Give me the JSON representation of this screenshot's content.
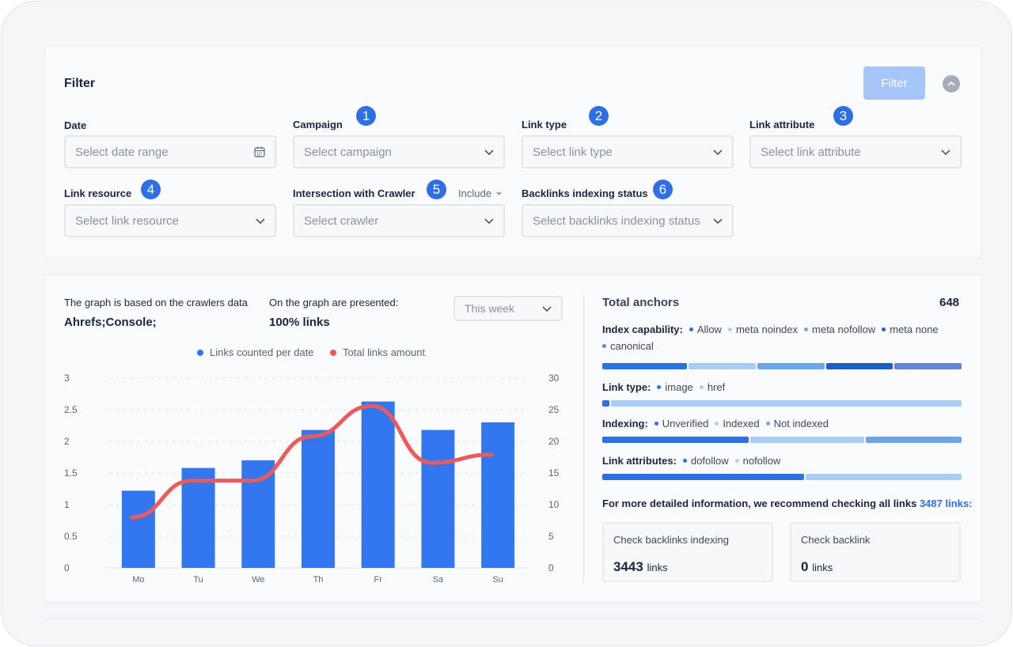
{
  "filter": {
    "title": "Filter",
    "filter_button": "Filter",
    "fields": {
      "date": {
        "label": "Date",
        "placeholder": "Select date range"
      },
      "campaign": {
        "label": "Campaign",
        "placeholder": "Select campaign",
        "badge": "1"
      },
      "link_type": {
        "label": "Link type",
        "placeholder": "Select link type",
        "badge": "2"
      },
      "link_attribute": {
        "label": "Link attribute",
        "placeholder": "Select link attribute",
        "badge": "3"
      },
      "link_resource": {
        "label": "Link resource",
        "placeholder": "Select link resource",
        "badge": "4"
      },
      "crawler": {
        "label": "Intersection with Crawler",
        "placeholder": "Select crawler",
        "badge": "5",
        "mode": "Include"
      },
      "indexing_status": {
        "label": "Backlinks indexing status",
        "placeholder": "Select backlinks indexing status",
        "badge": "6"
      }
    }
  },
  "graph": {
    "based_on_label": "The graph is based on the crawlers data",
    "based_on_value": "Ahrefs;Console;",
    "presented_label": "On the graph are presented:",
    "presented_value": "100% links",
    "period": "This week",
    "legend": {
      "counted": "Links counted per date",
      "total": "Total links amount"
    }
  },
  "chart_data": {
    "type": "bar",
    "categories": [
      "Mo",
      "Tu",
      "We",
      "Th",
      "Fr",
      "Sa",
      "Su"
    ],
    "series": [
      {
        "name": "Links counted per date",
        "type": "bar",
        "axis": "left",
        "color": "#3377f0",
        "values": [
          1.22,
          1.58,
          1.7,
          2.18,
          2.63,
          2.18,
          2.3
        ]
      },
      {
        "name": "Total links amount",
        "type": "line",
        "axis": "right",
        "color": "#ec5a5a",
        "values": [
          8,
          13.8,
          13.8,
          20.8,
          25.6,
          16.6,
          17.9
        ]
      }
    ],
    "y_left": {
      "range": [
        0,
        3
      ],
      "ticks": [
        "0",
        "0.5",
        "1",
        "1.5",
        "2",
        "2.5",
        "3"
      ]
    },
    "y_right": {
      "range": [
        0,
        30
      ],
      "ticks": [
        "0",
        "5",
        "10",
        "15",
        "20",
        "25",
        "30"
      ]
    },
    "grid": true,
    "legend_position": "top"
  },
  "anchors": {
    "title": "Total anchors",
    "total": "648",
    "groups": [
      {
        "label": "Index capability:",
        "items": [
          {
            "name": "Allow",
            "color": "#2f6fe6"
          },
          {
            "name": "meta noindex",
            "color": "#a9cef6"
          },
          {
            "name": "meta nofollow",
            "color": "#6fa4e6"
          },
          {
            "name": "meta none",
            "color": "#1e5dc8"
          },
          {
            "name": "canonical",
            "color": "#5f86cf"
          }
        ],
        "shares": [
          0.24,
          0.19,
          0.19,
          0.19,
          0.19
        ]
      },
      {
        "label": "Link type:",
        "items": [
          {
            "name": "image",
            "color": "#2f6fe6"
          },
          {
            "name": "href",
            "color": "#a9cef6"
          }
        ],
        "shares": [
          0.02,
          0.98
        ]
      },
      {
        "label": "Indexing:",
        "items": [
          {
            "name": "Unverified",
            "color": "#2f6fe6"
          },
          {
            "name": "Indexed",
            "color": "#a9cef6"
          },
          {
            "name": "Not indexed",
            "color": "#6fa4e6"
          }
        ],
        "shares": [
          0.41,
          0.32,
          0.27
        ]
      },
      {
        "label": "Link attributes:",
        "items": [
          {
            "name": "dofollow",
            "color": "#2f6fe6"
          },
          {
            "name": "nofollow",
            "color": "#a9cef6"
          }
        ],
        "shares": [
          0.565,
          0.435
        ]
      }
    ],
    "info_text": "For more detailed information, we recommend checking all links",
    "info_link": "3487 links:",
    "cards": [
      {
        "title": "Check backlinks indexing",
        "value": "3443",
        "unit": "links"
      },
      {
        "title": "Check backlink",
        "value": "0",
        "unit": "links"
      }
    ]
  }
}
